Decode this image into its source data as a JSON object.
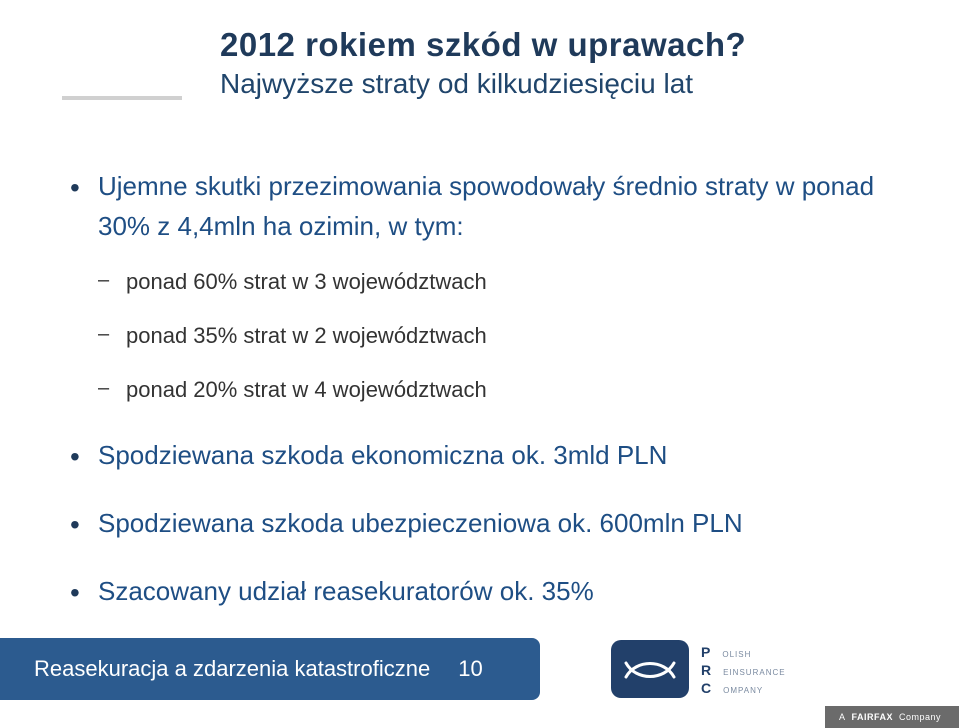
{
  "colors": {
    "title": "#1f3a5a",
    "subtitle": "#20456b",
    "bullet_text": "#1e4e84",
    "bullet_marker": "#1f3a5a",
    "sub_bullet_text": "#333333",
    "footer_bar_bg": "#2c5b8f",
    "footer_text": "#ffffff",
    "fairfax_bg": "#6b6b6b",
    "fairfax_text": "#ffffff",
    "logo_bg": "#22406a",
    "logo_text_primary": "#22406a",
    "logo_text_secondary": "#7a8aa0"
  },
  "typography": {
    "title_fontsize": 33,
    "subtitle_fontsize": 28,
    "lvl1_fontsize": 26,
    "lvl2_fontsize": 22,
    "footer_title_fontsize": 22,
    "footer_page_fontsize": 22,
    "logo_big_fontsize": 14,
    "logo_small_fontsize": 8
  },
  "title": {
    "main": "2012 rokiem szkód w uprawach?",
    "sub": "Najwyższe straty od kilkudziesięciu lat"
  },
  "bullets": [
    {
      "text": "Ujemne skutki przezimowania spowodowały średnio straty w ponad 30% z 4,4mln ha ozimin, w tym:",
      "children": [
        "ponad 60% strat w 3 województwach",
        "ponad 35% strat w 2 województwach",
        "ponad 20% strat w 4 województwach"
      ]
    },
    {
      "text": "Spodziewana szkoda ekonomiczna ok. 3mld PLN",
      "children": []
    },
    {
      "text": "Spodziewana szkoda ubezpieczeniowa ok. 600mln PLN",
      "children": []
    },
    {
      "text": "Szacowany udział reasekuratorów ok. 35%",
      "children": []
    }
  ],
  "footer": {
    "title": "Reasekuracja a zdarzenia katastroficzne",
    "page": "10",
    "fairfax_a": "A",
    "fairfax_brand": "FAIRFAX",
    "fairfax_company": "Company"
  },
  "logo": {
    "line1_big": "P",
    "line1_small": "OLISH",
    "line2_big": "R",
    "line2_small": "EINSURANCE",
    "line3_big": "C",
    "line3_small": "OMPANY"
  }
}
